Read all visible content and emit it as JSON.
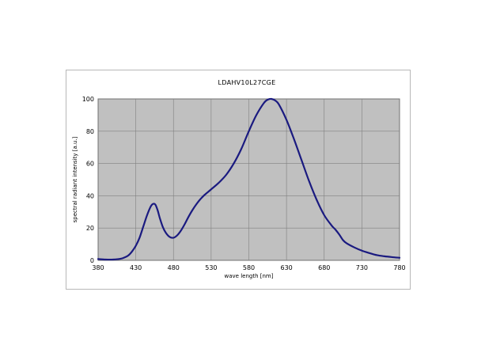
{
  "chart_data": {
    "type": "line",
    "title": "LDAHV10L27CGE",
    "xlabel": "wave length [nm]",
    "ylabel": "spectral radiant intensity [a.u.]",
    "xlim": [
      380,
      780
    ],
    "ylim": [
      0,
      100
    ],
    "x_ticks": [
      380,
      430,
      480,
      530,
      580,
      630,
      680,
      730,
      780
    ],
    "y_ticks": [
      0,
      20,
      40,
      60,
      80,
      100
    ],
    "grid": true,
    "legend": "none",
    "colors": {
      "line": "#1a1a80",
      "plot_bg": "#c0c0c0",
      "grid": "#808080"
    },
    "series": [
      {
        "x": [
          380,
          390,
          400,
          410,
          415,
          420,
          425,
          430,
          435,
          440,
          445,
          450,
          453,
          456,
          459,
          462,
          466,
          470,
          475,
          480,
          485,
          490,
          495,
          500,
          505,
          510,
          515,
          520,
          525,
          530,
          540,
          550,
          560,
          570,
          580,
          590,
          600,
          605,
          610,
          615,
          620,
          630,
          640,
          650,
          660,
          670,
          680,
          690,
          695,
          700,
          705,
          710,
          720,
          730,
          740,
          750,
          760,
          770,
          780
        ],
        "y": [
          0.8,
          0.5,
          0.5,
          1.0,
          1.8,
          3.0,
          5.5,
          9.0,
          14.0,
          21.0,
          28.0,
          33.5,
          35.0,
          34.5,
          31.0,
          26.0,
          20.5,
          17.0,
          14.5,
          14.0,
          15.5,
          18.5,
          22.5,
          27.0,
          31.0,
          34.5,
          37.5,
          40.0,
          42.0,
          44.0,
          48.0,
          53.0,
          60.0,
          69.0,
          80.0,
          90.0,
          97.5,
          99.5,
          100.0,
          99.0,
          96.5,
          87.0,
          75.0,
          62.0,
          49.0,
          37.5,
          28.0,
          21.5,
          19.0,
          16.0,
          12.5,
          10.5,
          8.0,
          6.0,
          4.5,
          3.2,
          2.5,
          2.0,
          1.6
        ]
      }
    ]
  }
}
